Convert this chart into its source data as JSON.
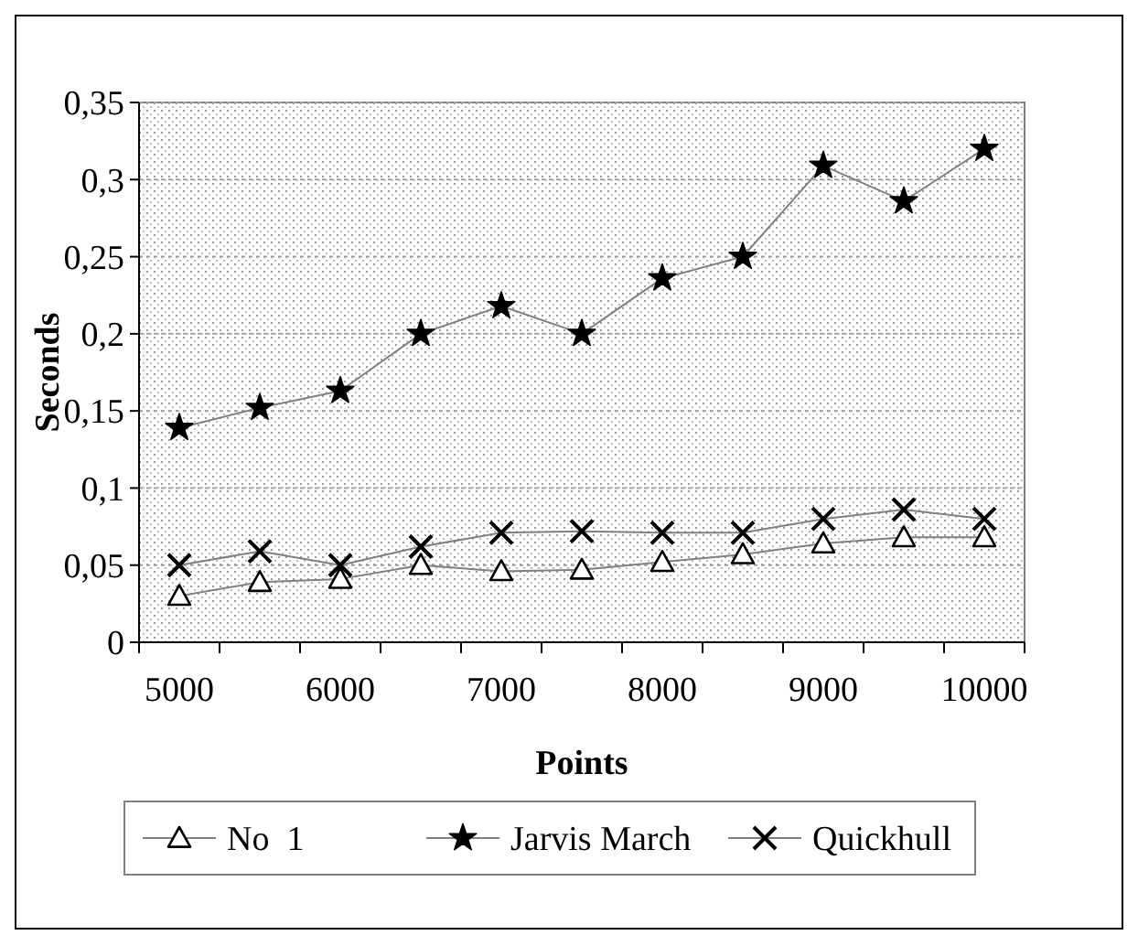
{
  "chart_data": {
    "type": "line",
    "xlabel": "Points",
    "ylabel": "Seconds",
    "categories": [
      "5000",
      null,
      "6000",
      null,
      "7000",
      null,
      "8000",
      null,
      "9000",
      null,
      "10000"
    ],
    "series": [
      {
        "name": "No  1",
        "color": "#000000",
        "marker": "triangle",
        "values": [
          0.03,
          0.039,
          0.041,
          0.05,
          0.046,
          0.047,
          0.052,
          0.057,
          0.064,
          0.068,
          0.068
        ]
      },
      {
        "name": "Jarvis March",
        "color": "#000000",
        "marker": "star",
        "values": [
          0.139,
          0.152,
          0.163,
          0.2,
          0.218,
          0.2,
          0.236,
          0.25,
          0.309,
          0.286,
          0.32
        ]
      },
      {
        "name": "Quickhull",
        "color": "#000000",
        "marker": "cross",
        "values": [
          0.05,
          0.059,
          0.05,
          0.062,
          0.071,
          0.072,
          0.071,
          0.071,
          0.08,
          0.086,
          0.08
        ]
      }
    ],
    "ylim": [
      0,
      0.35
    ],
    "yticks": [
      0,
      {
        "value": 0.05,
        "label": "0,05"
      },
      {
        "value": 0.1,
        "label": "0,1"
      },
      {
        "value": 0.15,
        "label": "0,15"
      },
      {
        "value": 0.2,
        "label": "0,2"
      },
      {
        "value": 0.25,
        "label": "0,25"
      },
      {
        "value": 0.3,
        "label": "0,3"
      },
      {
        "value": 0.35,
        "label": "0,35"
      }
    ],
    "grid": "y",
    "legend": "bottom",
    "line_style": "solid"
  }
}
